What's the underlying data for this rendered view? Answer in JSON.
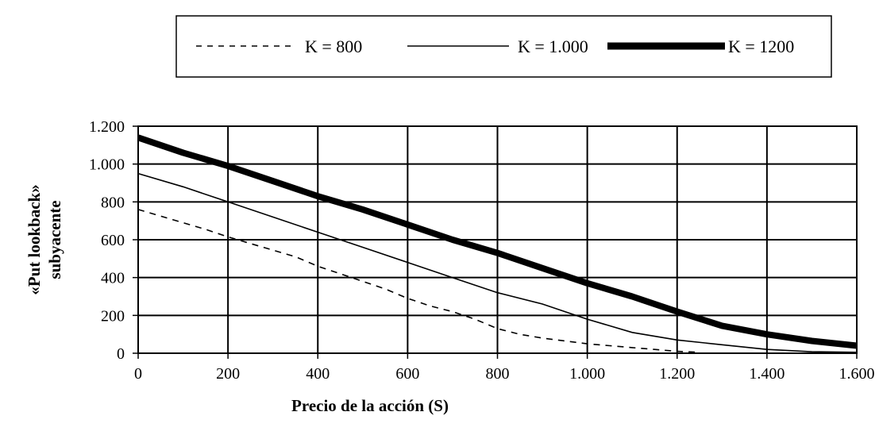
{
  "chart_data": {
    "type": "line",
    "title": "",
    "xlabel": "Precio de la acción (S)",
    "ylabel_lines": [
      "«Put lookback»",
      "subyacente"
    ],
    "xlim": [
      0,
      1600
    ],
    "ylim": [
      0,
      1200
    ],
    "x_ticks": [
      0,
      200,
      400,
      600,
      800,
      1000,
      1200,
      1400,
      1600
    ],
    "x_tick_labels": [
      "0",
      "200",
      "400",
      "600",
      "800",
      "1.000",
      "1.200",
      "1.400",
      "1.600"
    ],
    "y_ticks": [
      0,
      200,
      400,
      600,
      800,
      1000,
      1200
    ],
    "y_tick_labels": [
      "0",
      "200",
      "400",
      "600",
      "800",
      "1.000",
      "1.200"
    ],
    "grid": true,
    "legend_position": "top",
    "series": [
      {
        "name": "K = 800",
        "style": "dashed",
        "color": "#000000",
        "x": [
          0,
          50,
          100,
          150,
          200,
          250,
          300,
          350,
          400,
          450,
          500,
          550,
          600,
          650,
          700,
          750,
          800,
          850,
          900,
          950,
          1000,
          1050,
          1100,
          1150,
          1200,
          1250
        ],
        "y": [
          760,
          725,
          690,
          655,
          615,
          580,
          545,
          510,
          460,
          420,
          380,
          340,
          290,
          250,
          220,
          180,
          130,
          100,
          80,
          65,
          50,
          40,
          30,
          20,
          10,
          5
        ]
      },
      {
        "name": "K = 1.000",
        "style": "solid",
        "color": "#000000",
        "x": [
          0,
          100,
          200,
          300,
          400,
          500,
          600,
          700,
          800,
          900,
          1000,
          1100,
          1200,
          1300,
          1400,
          1500,
          1600
        ],
        "y": [
          950,
          880,
          800,
          720,
          640,
          560,
          480,
          400,
          320,
          260,
          180,
          110,
          70,
          45,
          20,
          8,
          5
        ]
      },
      {
        "name": "K = 1200",
        "style": "thick",
        "color": "#000000",
        "x": [
          0,
          100,
          200,
          300,
          400,
          500,
          600,
          700,
          800,
          900,
          1000,
          1100,
          1200,
          1300,
          1400,
          1500,
          1600
        ],
        "y": [
          1140,
          1060,
          990,
          910,
          830,
          760,
          680,
          600,
          530,
          450,
          370,
          300,
          220,
          145,
          100,
          65,
          40
        ]
      }
    ]
  }
}
